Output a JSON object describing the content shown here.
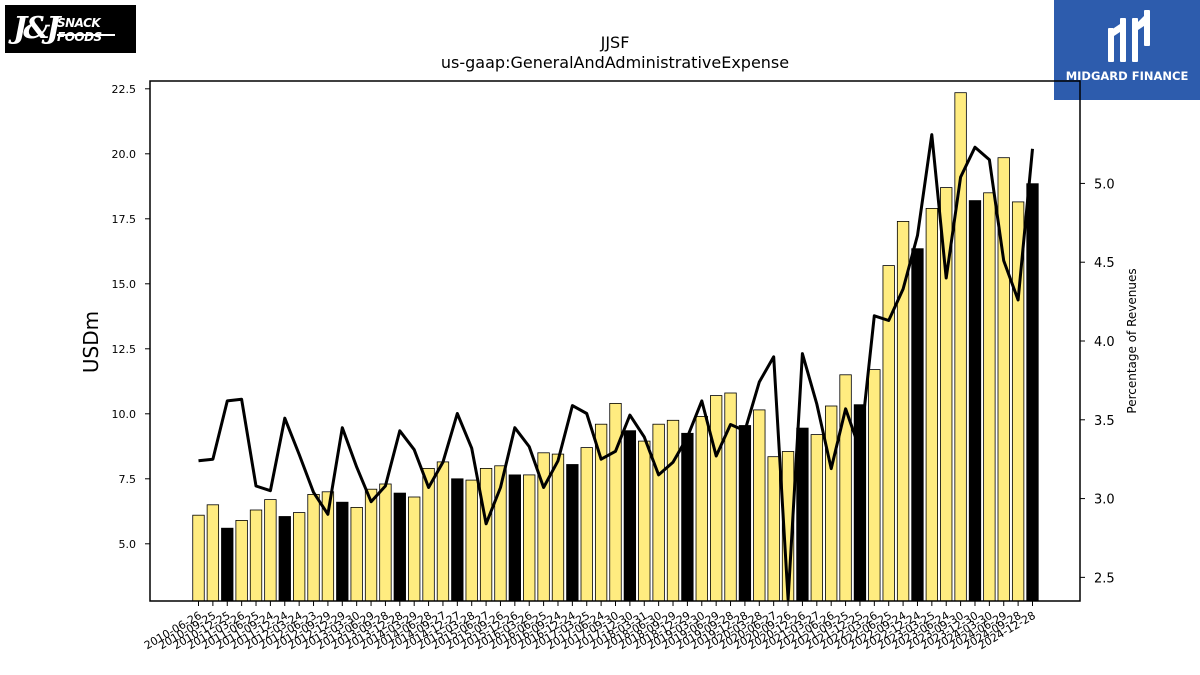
{
  "logos": {
    "left": {
      "text": "J&J SNACK FOODS",
      "name": "jj-snack-foods-logo"
    },
    "right": {
      "text": "MIDGARD FINANCE",
      "icon": "midgard-m-icon"
    }
  },
  "chart_data": {
    "type": "bar",
    "title": "JJSF",
    "subtitle": "us-gaap:GeneralAndAdministrativeExpense",
    "ylabel": "USDm",
    "y2label": "Percentage of Revenues",
    "ylim": [
      2.8,
      22.8
    ],
    "y2lim": [
      2.35,
      5.65
    ],
    "yticks": [
      "5.0",
      "7.5",
      "10.0",
      "12.5",
      "15.0",
      "17.5",
      "20.0",
      "22.5"
    ],
    "y2ticks": [
      "2.5",
      "3.0",
      "3.5",
      "4.0",
      "4.5",
      "5.0"
    ],
    "colors": {
      "bar_quarter": "#ffec80",
      "bar_annual": "#000000",
      "bar_edge": "#000000",
      "line": "#000000"
    },
    "categories": [
      "2010-06-26",
      "2010-09-25",
      "2010-12-25",
      "2011-03-26",
      "2011-06-25",
      "2011-09-24",
      "2011-12-24",
      "2012-03-24",
      "2012-06-23",
      "2012-09-29",
      "2012-12-29",
      "2013-03-30",
      "2013-06-29",
      "2013-09-28",
      "2013-12-28",
      "2014-03-29",
      "2014-06-28",
      "2014-09-27",
      "2014-12-27",
      "2015-03-28",
      "2015-06-27",
      "2015-09-26",
      "2015-12-26",
      "2016-03-26",
      "2016-06-25",
      "2016-09-24",
      "2016-12-24",
      "2017-03-25",
      "2017-06-24",
      "2017-09-30",
      "2017-12-30",
      "2018-03-31",
      "2018-06-30",
      "2018-09-29",
      "2018-12-29",
      "2019-03-30",
      "2019-06-29",
      "2019-09-28",
      "2019-12-28",
      "2020-03-28",
      "2020-06-27",
      "2020-09-26",
      "2020-12-26",
      "2021-03-27",
      "2021-06-26",
      "2021-09-25",
      "2021-12-25",
      "2022-03-26",
      "2022-06-25",
      "2022-09-24",
      "2022-12-24",
      "2023-03-25",
      "2023-06-24",
      "2023-09-30",
      "2023-12-30",
      "2024-03-30",
      "2024-06-29",
      "2024-09-28",
      "2024-12-28"
    ],
    "tick_labels": [
      "2010-06-26",
      "2010-09-25",
      "2010-12-25",
      "2011-03-26",
      "2011-06-25",
      "2011-09-24",
      "2011-12-24",
      "2012-03-24",
      "2012-06-23",
      "2012-09-29",
      "2012-12-29",
      "2013-03-30",
      "2013-06-29",
      "2013-09-28",
      "2013-12-28",
      "2014-03-29",
      "2014-06-28",
      "2014-09-27",
      "2014-12-27",
      "2015-03-28",
      "2015-06-27",
      "2015-09-26",
      "2015-12-26",
      "2016-03-26",
      "2016-06-25",
      "2016-09-24",
      "2016-12-24",
      "2017-03-25",
      "2017-06-24",
      "2017-09-30",
      "2017-12-30",
      "2018-03-31",
      "2018-06-30",
      "2018-09-29",
      "2018-12-29",
      "2019-03-30",
      "2019-06-29",
      "2019-09-28",
      "2019-12-28",
      "2020-03-28",
      "2020-06-27",
      "2020-09-26",
      "2020-12-26",
      "2021-03-27",
      "2021-06-26",
      "2021-09-25",
      "2021-12-25",
      "2022-03-26",
      "2022-06-25",
      "2022-09-24",
      "2022-12-24",
      "2023-03-25",
      "2023-06-24",
      "2023-09-30",
      "2023-12-30",
      "2024-03-30",
      "2024-06-29",
      "2024-09-28",
      "2024-12-28"
    ],
    "annual": [
      false,
      false,
      true,
      false,
      false,
      false,
      true,
      false,
      false,
      false,
      true,
      false,
      false,
      false,
      true,
      false,
      false,
      false,
      true,
      false,
      false,
      false,
      true,
      false,
      false,
      false,
      true,
      false,
      false,
      false,
      true,
      false,
      false,
      false,
      true,
      false,
      false,
      false,
      true,
      false,
      false,
      false,
      true,
      false,
      false,
      false,
      true,
      false,
      false,
      false,
      true,
      false,
      false,
      false,
      true,
      false,
      false,
      false,
      true
    ],
    "values": [
      6.1,
      6.5,
      5.6,
      5.9,
      6.3,
      6.7,
      6.05,
      6.2,
      6.9,
      7.0,
      6.6,
      6.4,
      7.1,
      7.3,
      6.95,
      6.8,
      7.9,
      8.15,
      7.5,
      7.45,
      7.9,
      8.0,
      7.65,
      7.65,
      8.5,
      8.45,
      8.05,
      8.7,
      9.6,
      10.4,
      9.35,
      8.95,
      9.6,
      9.75,
      9.25,
      9.9,
      10.7,
      10.8,
      9.55,
      10.15,
      8.35,
      8.55,
      9.45,
      9.2,
      10.3,
      11.5,
      10.35,
      11.7,
      15.7,
      17.4,
      16.35,
      17.9,
      18.7,
      22.35,
      18.2,
      18.5,
      19.85,
      18.15,
      18.85
    ],
    "series": [
      {
        "name": "Percentage of Revenues",
        "axis": "right",
        "values": [
          3.24,
          3.25,
          3.62,
          3.63,
          3.08,
          3.05,
          3.51,
          3.28,
          3.04,
          2.9,
          3.45,
          3.2,
          2.98,
          3.08,
          3.43,
          3.31,
          3.07,
          3.23,
          3.54,
          3.32,
          2.84,
          3.07,
          3.45,
          3.33,
          3.07,
          3.24,
          3.59,
          3.54,
          3.25,
          3.3,
          3.53,
          3.39,
          3.15,
          3.23,
          3.39,
          3.62,
          3.27,
          3.47,
          3.43,
          3.74,
          3.9,
          2.36,
          3.92,
          3.6,
          3.19,
          3.57,
          3.31,
          4.16,
          4.13,
          4.33,
          4.67,
          5.31,
          4.4,
          5.04,
          5.23,
          5.15,
          4.51,
          4.26,
          5.22
        ]
      }
    ],
    "grid": false,
    "legend": "none"
  }
}
